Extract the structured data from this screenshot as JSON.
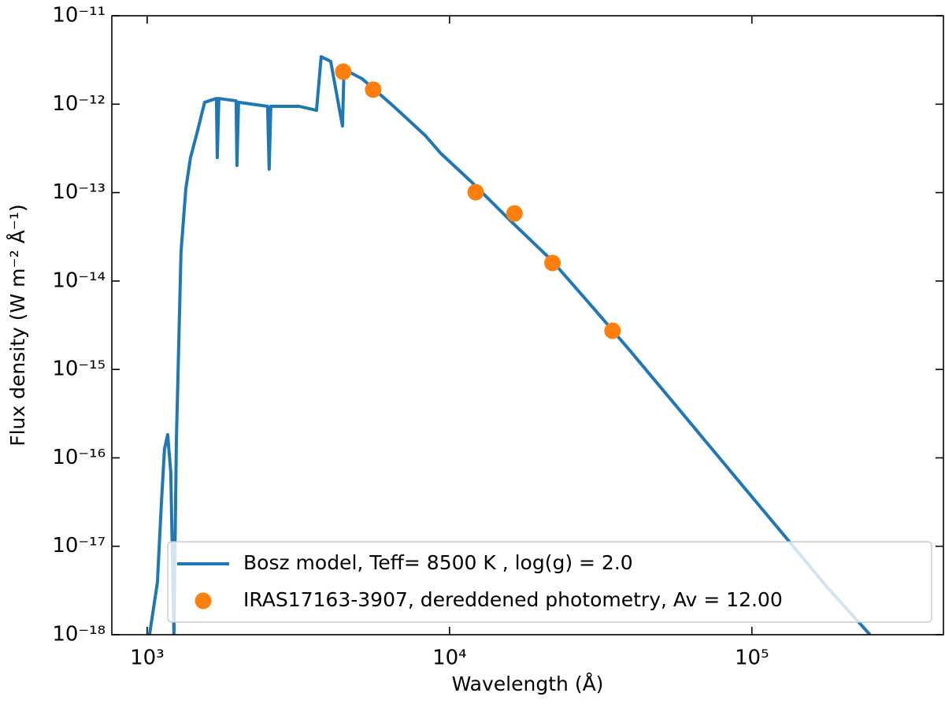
{
  "chart_data": {
    "type": "line",
    "xlabel": "Wavelength (Å)",
    "ylabel": "Flux density (W m⁻² Å⁻¹)",
    "xscale": "log",
    "yscale": "log",
    "xlim": [
      764,
      430000
    ],
    "ylim": [
      1e-18,
      1e-11
    ],
    "xticks": [
      {
        "value": 1000,
        "label": "10³"
      },
      {
        "value": 10000,
        "label": "10⁴"
      },
      {
        "value": 100000,
        "label": "10⁵"
      }
    ],
    "yticks": [
      {
        "value": 1e-18,
        "label": "10⁻¹⁸"
      },
      {
        "value": 1e-17,
        "label": "10⁻¹⁷"
      },
      {
        "value": 1e-16,
        "label": "10⁻¹⁶"
      },
      {
        "value": 1e-15,
        "label": "10⁻¹⁵"
      },
      {
        "value": 1e-14,
        "label": "10⁻¹⁴"
      },
      {
        "value": 1e-13,
        "label": "10⁻¹³"
      },
      {
        "value": 1e-12,
        "label": "10⁻¹²"
      },
      {
        "value": 1e-11,
        "label": "10⁻¹¹"
      }
    ],
    "legend": "lower right",
    "series": [
      {
        "name": "Bosz model, Teff= 8500 K , log(g) = 2.0",
        "type": "line",
        "color": "#1f77b4",
        "x": [
          1018,
          1081,
          1114,
          1141,
          1169,
          1197,
          1226,
          1249,
          1294,
          1342,
          1391,
          1459,
          1549,
          1695,
          1705,
          1726,
          1969,
          1981,
          2005,
          2502,
          2532,
          2564,
          3181,
          3631,
          3763,
          4045,
          4425,
          4477,
          5139,
          6533,
          8306,
          9363,
          11900,
          16060,
          21670,
          29250,
          39480,
          53300,
          71930,
          97050,
          131000,
          176800,
          245800
        ],
        "values": [
          1e-18,
          3.88e-18,
          3.01e-17,
          1.26e-16,
          1.83e-16,
          6.84e-17,
          1e-18,
          1.55e-16,
          2.13e-14,
          1.1e-13,
          2.49e-13,
          4.61e-13,
          1.05e-12,
          1.16e-12,
          2.49e-13,
          1.16e-12,
          1.09e-12,
          2.03e-13,
          1.05e-12,
          9.46e-13,
          1.84e-13,
          9.46e-13,
          9.46e-13,
          8.53e-13,
          3.44e-12,
          3.05e-12,
          5.66e-13,
          2.48e-12,
          1.94e-12,
          9.46e-13,
          4.43e-13,
          2.77e-13,
          1.29e-13,
          4.65e-14,
          1.74e-14,
          5.4e-15,
          1.64e-15,
          4.8e-16,
          1.4e-16,
          4.1e-17,
          1.2e-17,
          3.5e-18,
          1e-18
        ]
      },
      {
        "name": "IRAS17163-3907, dereddened photometry, Av = 12.00",
        "type": "scatter",
        "color": "#ff7f0e",
        "x": [
          4450,
          5590,
          12200,
          16400,
          21900,
          34600
        ],
        "values": [
          2.33e-12,
          1.46e-12,
          1.01e-13,
          5.8e-14,
          1.6e-14,
          2.74e-15
        ]
      }
    ]
  }
}
